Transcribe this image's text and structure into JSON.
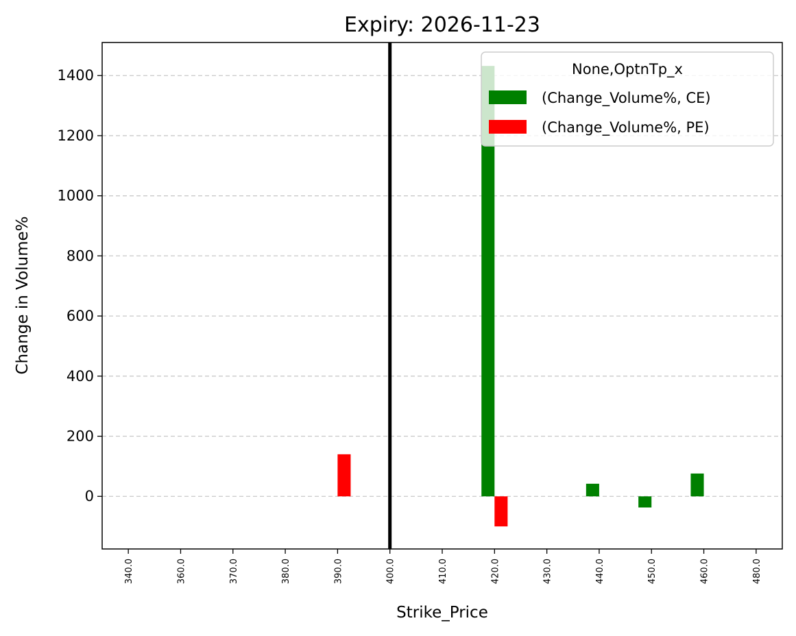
{
  "chart_data": {
    "type": "bar",
    "title": "Expiry: 2026-11-23",
    "xlabel": "Strike_Price",
    "ylabel": "Change in Volume%",
    "categories": [
      "340.0",
      "360.0",
      "370.0",
      "380.0",
      "390.0",
      "400.0",
      "410.0",
      "420.0",
      "430.0",
      "440.0",
      "450.0",
      "460.0",
      "480.0"
    ],
    "series": [
      {
        "name": "(Change_Volume%, CE)",
        "color": "#008000",
        "values": [
          null,
          null,
          null,
          null,
          null,
          null,
          null,
          1432,
          null,
          42,
          -37,
          76,
          null
        ]
      },
      {
        "name": "(Change_Volume%, PE)",
        "color": "#ff0000",
        "values": [
          null,
          null,
          null,
          null,
          140,
          null,
          null,
          -100,
          null,
          null,
          null,
          null,
          null
        ]
      }
    ],
    "ylim": [
      -175,
      1510
    ],
    "yticks": [
      0,
      200,
      400,
      600,
      800,
      1000,
      1200,
      1400
    ],
    "grid": "y-dashed",
    "reference_line": {
      "category": "400.0",
      "color": "#000000"
    },
    "legend": {
      "title": "None,OptnTp_x",
      "placement": "top-right"
    }
  }
}
